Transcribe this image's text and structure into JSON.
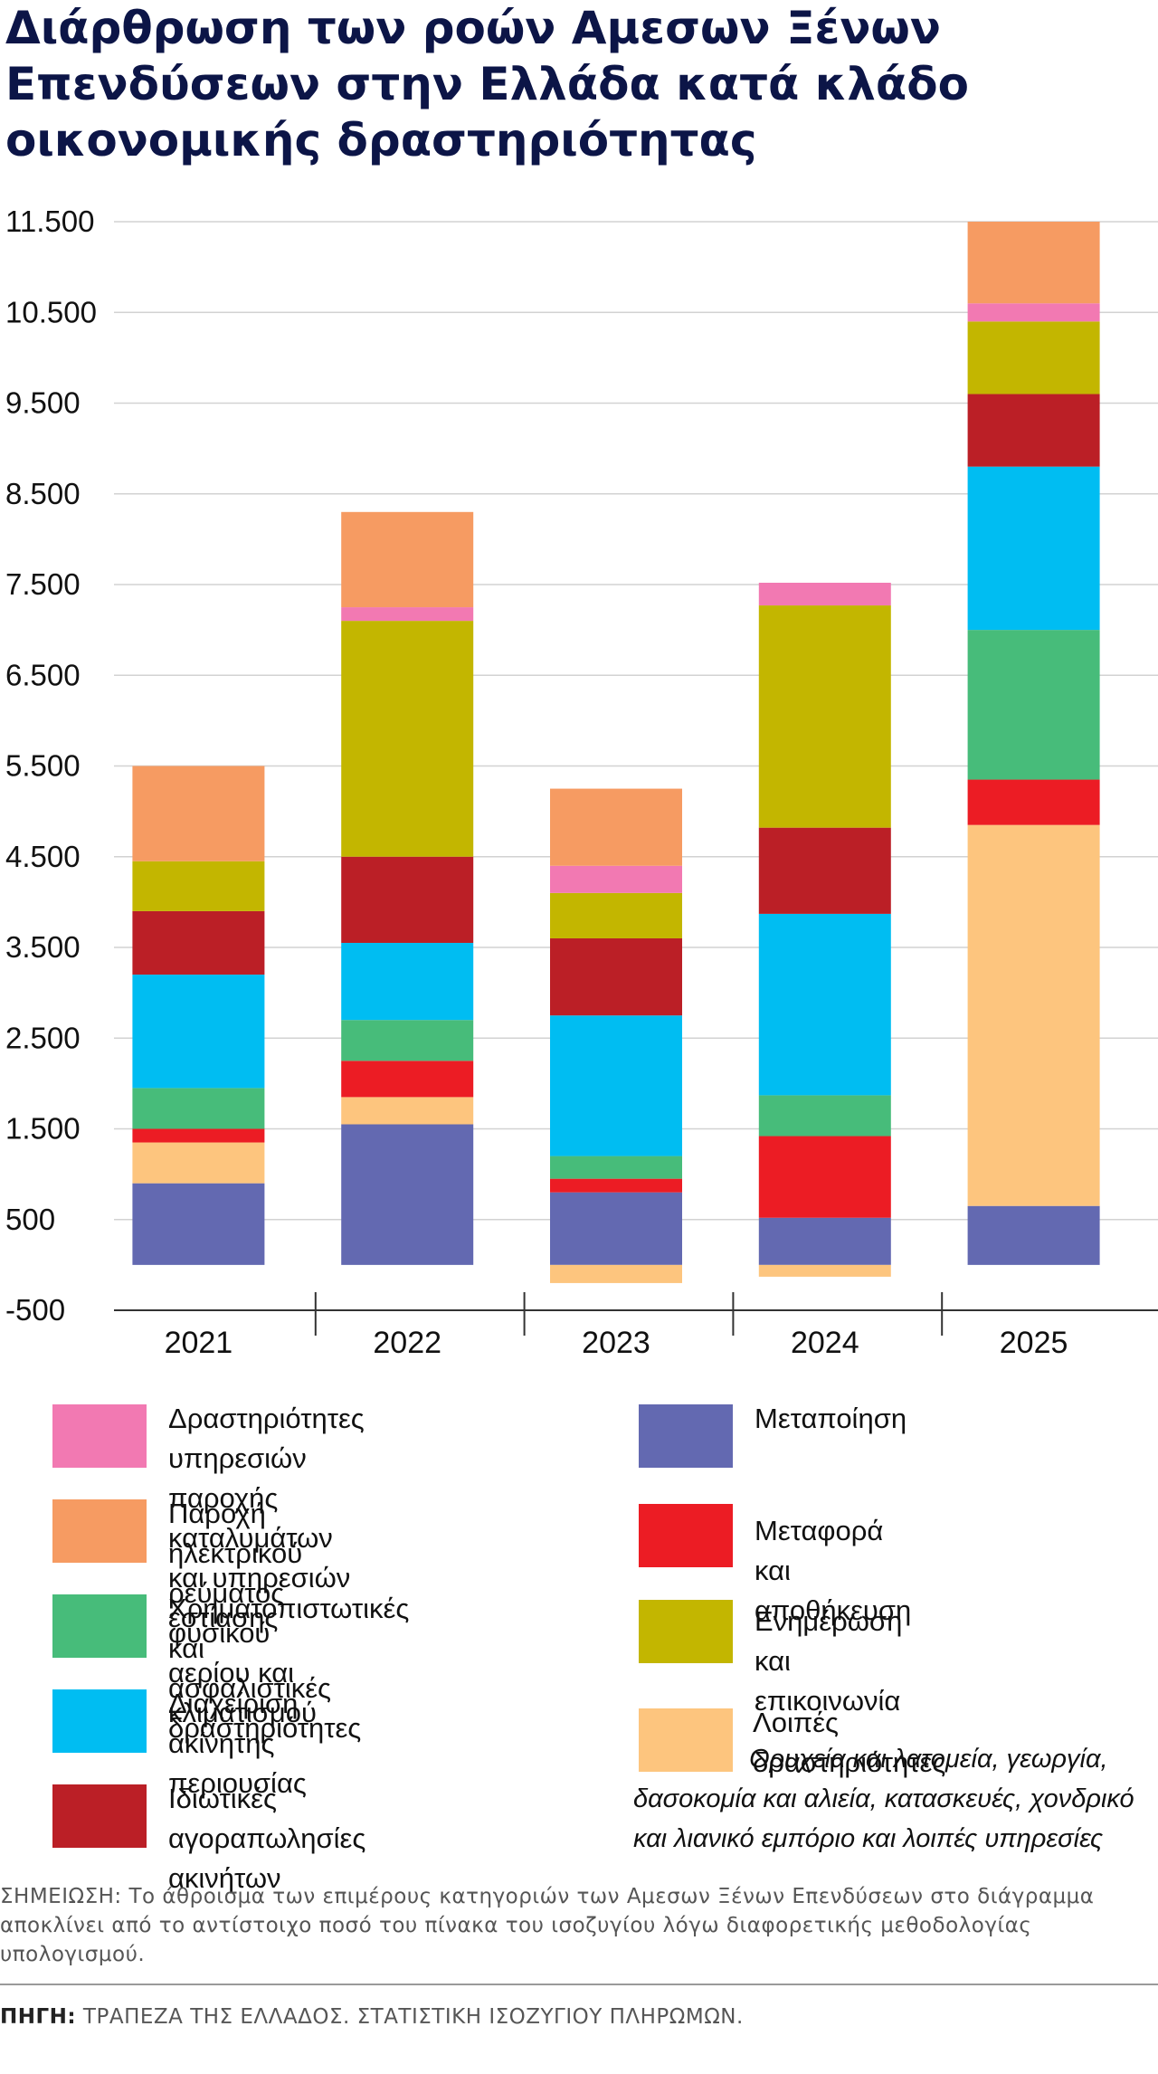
{
  "title": "Διάρθρωση των ροών Αμεσων Ξένων Επενδύσεων στην Ελλάδα κατά κλάδο οικονομικής δραστηριότητας",
  "chart_data": {
    "type": "bar",
    "stacked": true,
    "categories": [
      "2021",
      "2022",
      "2023",
      "2024",
      "2025"
    ],
    "ylim": [
      -500,
      11500
    ],
    "yticks": [
      -500,
      500,
      1500,
      2500,
      3500,
      4500,
      5500,
      6500,
      7500,
      8500,
      9500,
      10500,
      11500
    ],
    "ytick_labels": [
      "-500",
      "500",
      "1.500",
      "2.500",
      "3.500",
      "4.500",
      "5.500",
      "6.500",
      "7.500",
      "8.500",
      "9.500",
      "10.500",
      "11.500"
    ],
    "grid": true,
    "series": [
      {
        "key": "manufacturing",
        "name": "Μεταποίηση",
        "color": "#6369b1",
        "values": [
          900,
          1550,
          800,
          520,
          650
        ]
      },
      {
        "key": "other",
        "name": "Λοιπές δραστηριότητες",
        "color": "#fdc57e",
        "values": [
          450,
          300,
          -200,
          -130,
          4200
        ]
      },
      {
        "key": "transport",
        "name": "Μεταφορά και αποθήκευση",
        "color": "#ec1c24",
        "values": [
          150,
          400,
          150,
          900,
          500
        ]
      },
      {
        "key": "finance",
        "name": "Χρηματοπιστωτικές και ασφαλιστικές δραστηριότητες",
        "color": "#47bc7a",
        "values": [
          450,
          450,
          250,
          450,
          1650
        ]
      },
      {
        "key": "real_estate_mgmt",
        "name": "Διαχείριση ακίνητης περιουσίας",
        "color": "#00bdf2",
        "values": [
          1250,
          850,
          1550,
          2000,
          1800
        ]
      },
      {
        "key": "real_estate_tx",
        "name": "Ιδιωτικές αγοραπωλησίες ακινήτων",
        "color": "#bb1f26",
        "values": [
          700,
          950,
          850,
          950,
          800
        ]
      },
      {
        "key": "ict",
        "name": "Ενημέρωση και επικοινωνία",
        "color": "#c3b600",
        "values": [
          550,
          2600,
          500,
          2450,
          800
        ]
      },
      {
        "key": "accommodation",
        "name": "Δραστηριότητες υπηρεσιών παροχής καταλυμάτων και υπηρεσιών εστίασης",
        "color": "#f279b2",
        "values": [
          0,
          150,
          300,
          250,
          200
        ]
      },
      {
        "key": "energy",
        "name": "Παροχή ηλεκτρικού ρεύματος φυσικού αερίου και κλιματισμού",
        "color": "#f69b62",
        "values": [
          1050,
          1050,
          850,
          0,
          900
        ]
      }
    ]
  },
  "legend": {
    "accommodation": {
      "line1": "Δραστηριότητες υπηρεσιών παροχής",
      "line2": "καταλυμάτων και υπηρεσιών εστίασης"
    },
    "energy": {
      "line1": "Παροχή ηλεκτρικού ρεύματος",
      "line2": "φυσικού αερίου και κλιματισμού"
    },
    "finance": {
      "line1": "Χρηματοπιστωτικές και",
      "line2": "ασφαλιστικές δραστηριότητες"
    },
    "real_estate_mgmt": {
      "line1": "Διαχείριση",
      "line2": "ακίνητης περιουσίας"
    },
    "real_estate_tx": {
      "line1": "Ιδιωτικές αγοραπωλησίες",
      "line2": "ακινήτων"
    },
    "manufacturing": {
      "line1": "Μεταποίηση"
    },
    "transport": {
      "line1": "Μεταφορά και αποθήκευση"
    },
    "ict": {
      "line1": "Ενημέρωση και επικοινωνία"
    },
    "other": {
      "line1": "Λοιπές δραστηριότητες",
      "sub1": "Ορυχεία και λατομεία, γεωργία,",
      "sub2": "δασοκομία και αλιεία, κατασκευές, χονδρικό",
      "sub3": "και λιανικό εμπόριο και λοιπές υπηρεσίες"
    }
  },
  "note": "ΣΗΜΕΙΩΣΗ: Το άθροισμα των επιμέρους κατηγοριών των Αμεσων Ξένων Επενδύσεων στο διάγραμμα αποκλίνει από το αντίστοιχο ποσό του πίνακα του ισοζυγίου λόγω διαφορετικής μεθοδολογίας υπολογισμού.",
  "source": {
    "label": "ΠΗΓΗ:",
    "text": "ΤΡΑΠΕΖΑ ΤΗΣ ΕΛΛΑΔΟΣ. ΣΤΑΤΙΣΤΙΚΗ ΙΣΟΖΥΓΙΟΥ ΠΛΗΡΩΜΩΝ."
  }
}
